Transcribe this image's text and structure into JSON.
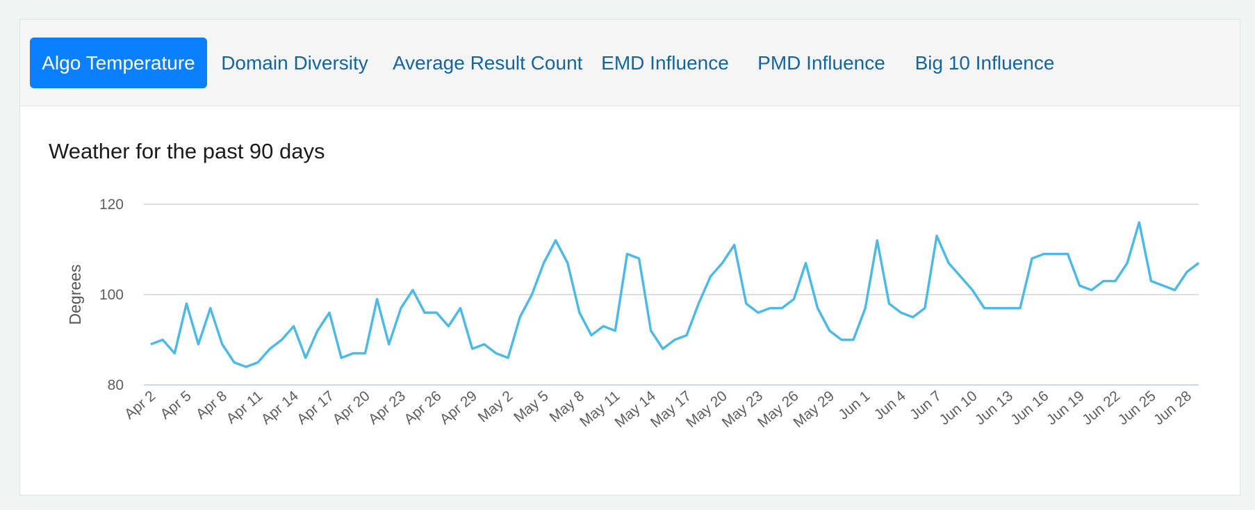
{
  "tabs": [
    {
      "label": "Algo Temperature",
      "active": true
    },
    {
      "label": "Domain Diversity",
      "active": false
    },
    {
      "label": "Average Result Count",
      "active": false
    },
    {
      "label": "EMD Influence",
      "active": false
    },
    {
      "label": "PMD Influence",
      "active": false
    },
    {
      "label": "Big 10 Influence",
      "active": false
    }
  ],
  "colors": {
    "line": "#4db9e8",
    "active_tab": "#0a80ff",
    "tab_text": "#13659e"
  },
  "chart_data": {
    "type": "line",
    "title": "Weather for the past 90 days",
    "ylabel": "Degrees",
    "xlabel": "",
    "ylim": [
      80,
      120
    ],
    "yticks": [
      80,
      100,
      120
    ],
    "grid": true,
    "legend": "none",
    "xtick_labels": [
      "Apr 2",
      "Apr 5",
      "Apr 8",
      "Apr 11",
      "Apr 14",
      "Apr 17",
      "Apr 20",
      "Apr 23",
      "Apr 26",
      "Apr 29",
      "May 2",
      "May 5",
      "May 8",
      "May 11",
      "May 14",
      "May 17",
      "May 20",
      "May 23",
      "May 26",
      "May 29",
      "Jun 1",
      "Jun 4",
      "Jun 7",
      "Jun 10",
      "Jun 13",
      "Jun 16",
      "Jun 19",
      "Jun 22",
      "Jun 25",
      "Jun 28"
    ],
    "series": [
      {
        "values": [
          89,
          90,
          87,
          98,
          89,
          97,
          89,
          85,
          84,
          85,
          88,
          90,
          93,
          86,
          92,
          96,
          86,
          87,
          87,
          99,
          89,
          97,
          101,
          96,
          96,
          93,
          97,
          88,
          89,
          87,
          86,
          95,
          100,
          107,
          112,
          107,
          96,
          91,
          93,
          92,
          109,
          108,
          92,
          88,
          90,
          91,
          98,
          104,
          107,
          111,
          98,
          96,
          97,
          97,
          99,
          107,
          97,
          92,
          90,
          90,
          97,
          112,
          98,
          96,
          95,
          97,
          113,
          107,
          104,
          101,
          97,
          97,
          97,
          97,
          108,
          109,
          109,
          109,
          102,
          101,
          103,
          103,
          107,
          116,
          103,
          102,
          101,
          105,
          107
        ]
      }
    ]
  }
}
